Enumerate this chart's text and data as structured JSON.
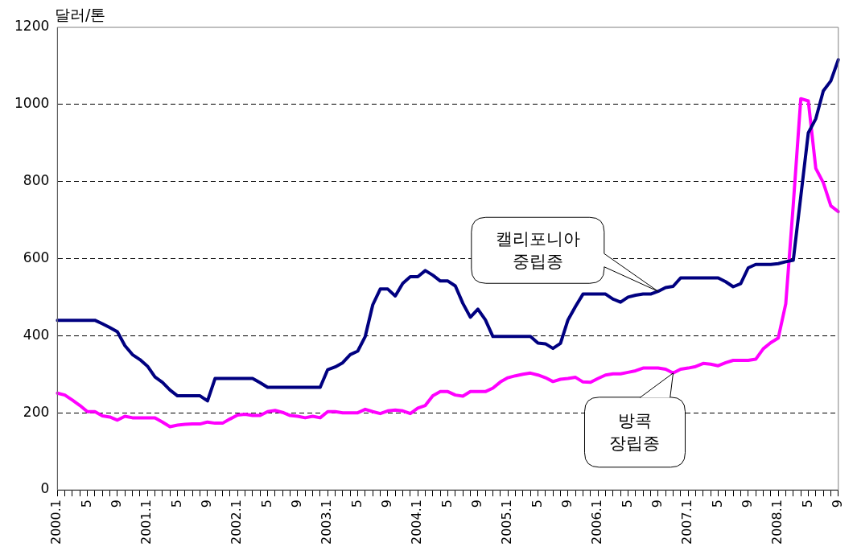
{
  "chart_data": {
    "type": "line",
    "ylabel": "달러/톤",
    "categories": [
      "2000.1",
      null,
      null,
      null,
      "5",
      null,
      null,
      null,
      "9",
      null,
      null,
      null,
      "2001.1",
      null,
      null,
      null,
      "5",
      null,
      null,
      null,
      "9",
      null,
      null,
      null,
      "2002.1",
      null,
      null,
      null,
      "5",
      null,
      null,
      null,
      "9",
      null,
      null,
      null,
      "2003.1",
      null,
      null,
      null,
      "5",
      null,
      null,
      null,
      "9",
      null,
      null,
      null,
      "2004.1",
      null,
      null,
      null,
      "5",
      null,
      null,
      null,
      "9",
      null,
      null,
      null,
      "2005.1",
      null,
      null,
      null,
      "5",
      null,
      null,
      null,
      "9",
      null,
      null,
      null,
      "2006.1",
      null,
      null,
      null,
      "5",
      null,
      null,
      null,
      "9",
      null,
      null,
      null,
      "2007.1",
      null,
      null,
      null,
      "5",
      null,
      null,
      null,
      "9",
      null,
      null,
      null,
      "2008.1",
      null,
      null,
      null,
      "5",
      null,
      null,
      null,
      "9"
    ],
    "series": [
      {
        "name": "캘리포니아 중립종",
        "color": "#000080",
        "values": [
          440,
          440,
          440,
          440,
          440,
          440,
          431,
          421,
          410,
          374,
          351,
          338,
          321,
          293,
          279,
          259,
          244,
          244,
          244,
          244,
          231,
          289,
          289,
          289,
          289,
          289,
          289,
          278,
          266,
          266,
          266,
          266,
          266,
          266,
          266,
          266,
          312,
          319,
          330,
          351,
          360,
          398,
          480,
          521,
          521,
          503,
          536,
          553,
          553,
          569,
          557,
          542,
          542,
          529,
          484,
          448,
          469,
          441,
          398,
          398,
          398,
          398,
          398,
          398,
          381,
          379,
          367,
          380,
          441,
          476,
          508,
          508,
          508,
          508,
          495,
          487,
          500,
          505,
          508,
          508,
          515,
          525,
          528,
          550,
          550,
          550,
          550,
          550,
          550,
          540,
          527,
          535,
          576,
          585,
          585,
          585,
          587,
          592,
          596,
          761,
          926,
          963,
          1035,
          1061,
          1116
        ]
      },
      {
        "name": "방콕 장립종",
        "color": "#ff00ff",
        "values": [
          251,
          246,
          233,
          219,
          203,
          203,
          192,
          189,
          181,
          191,
          187,
          187,
          187,
          187,
          176,
          164,
          168,
          170,
          171,
          171,
          176,
          173,
          173,
          184,
          194,
          196,
          193,
          193,
          203,
          206,
          201,
          193,
          191,
          187,
          191,
          187,
          203,
          203,
          200,
          200,
          200,
          209,
          203,
          198,
          205,
          207,
          205,
          198,
          212,
          219,
          244,
          255,
          255,
          246,
          243,
          255,
          255,
          255,
          264,
          280,
          291,
          296,
          300,
          303,
          298,
          291,
          281,
          287,
          289,
          292,
          280,
          279,
          289,
          298,
          301,
          301,
          305,
          309,
          316,
          316,
          316,
          313,
          303,
          313,
          316,
          320,
          328,
          326,
          322,
          330,
          336,
          336,
          336,
          339,
          366,
          382,
          394,
          483,
          740,
          1015,
          1009,
          834,
          797,
          737,
          722
        ]
      }
    ],
    "ylim": [
      0,
      1200
    ],
    "yticks": [
      0,
      200,
      400,
      600,
      800,
      1000,
      1200
    ],
    "grid": "y",
    "legend": false,
    "marker": "none",
    "line_style": "solid"
  }
}
